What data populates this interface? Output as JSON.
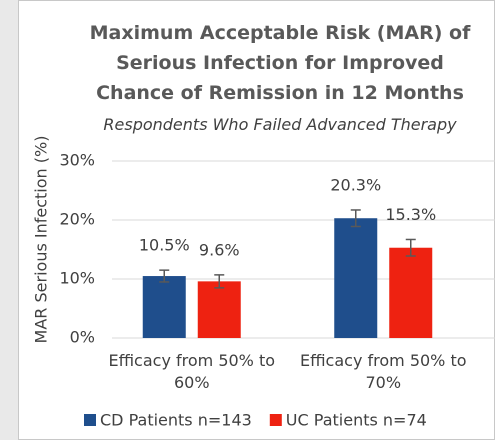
{
  "chart_data": {
    "type": "bar",
    "title": "Maximum Acceptable Risk (MAR) of Serious Infection for Improved Chance of Remission in 12 Months",
    "subtitle": "Respondents Who  Failed Advanced Therapy",
    "y_label": "MAR Serious Infection (%)",
    "categories": [
      "Efficacy from 50% to 60%",
      "Efficacy from 50% to 70%"
    ],
    "series": [
      {
        "name": "CD Patients n=143",
        "color": "#1f4e8c",
        "values": [
          10.5,
          20.3
        ],
        "value_labels": [
          "10.5%",
          "20.3%"
        ],
        "errors": [
          1.0,
          1.4
        ]
      },
      {
        "name": "UC Patients n=74",
        "color": "#ee2211",
        "values": [
          9.6,
          15.3
        ],
        "value_labels": [
          "9.6%",
          "15.3%"
        ],
        "errors": [
          1.1,
          1.4
        ]
      }
    ],
    "ylim": [
      0,
      30
    ],
    "yticks": [
      {
        "value": 0,
        "label": "0%"
      },
      {
        "value": 10,
        "label": "10%"
      },
      {
        "value": 20,
        "label": "20%"
      },
      {
        "value": 30,
        "label": "30%"
      }
    ],
    "grid": true,
    "legend": "bottom"
  }
}
